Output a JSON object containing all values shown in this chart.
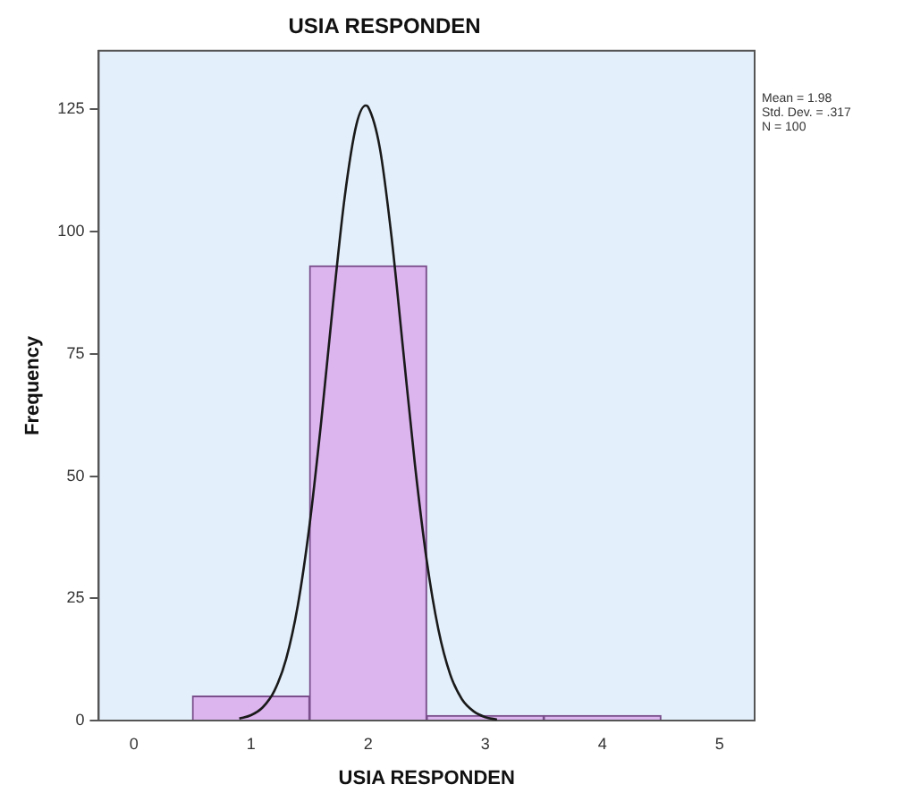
{
  "chart_data": {
    "type": "histogram",
    "title": "USIA RESPONDEN",
    "xlabel": "USIA RESPONDEN",
    "ylabel": "Frequency",
    "bins": [
      0.5,
      1.5,
      2.5,
      3.5,
      4.5
    ],
    "values": [
      5,
      93,
      1,
      1
    ],
    "color": "#dcb4ee",
    "series": [
      {
        "type": "line",
        "color": "#1a1a1a",
        "x": [
          0.9,
          1.0,
          1.1,
          1.2,
          1.3,
          1.4,
          1.5,
          1.6,
          1.7,
          1.8,
          1.9,
          1.98,
          2.0,
          2.1,
          2.2,
          2.3,
          2.4,
          2.5,
          2.6,
          2.7,
          2.8,
          2.9,
          3.0,
          3.1
        ],
        "values": [
          0.4,
          1.1,
          2.7,
          6.1,
          12.6,
          23.6,
          40.0,
          61.3,
          85.2,
          107.1,
          121.9,
          125.8,
          125.5,
          117.1,
          98.9,
          75.6,
          52.3,
          32.8,
          18.6,
          9.5,
          4.4,
          1.9,
          0.7,
          0.2
        ]
      }
    ],
    "xlim": [
      -0.3,
      5.3
    ],
    "xticks": [
      0,
      1,
      2,
      3,
      4,
      5
    ],
    "ylim": [
      0,
      137
    ],
    "yticks": [
      0,
      25,
      50,
      75,
      100,
      125
    ],
    "grid": false,
    "legend": false,
    "marker": "none",
    "annotations": [
      "Mean = 1.98",
      "Std. Dev. = .317",
      "N = 100"
    ]
  }
}
